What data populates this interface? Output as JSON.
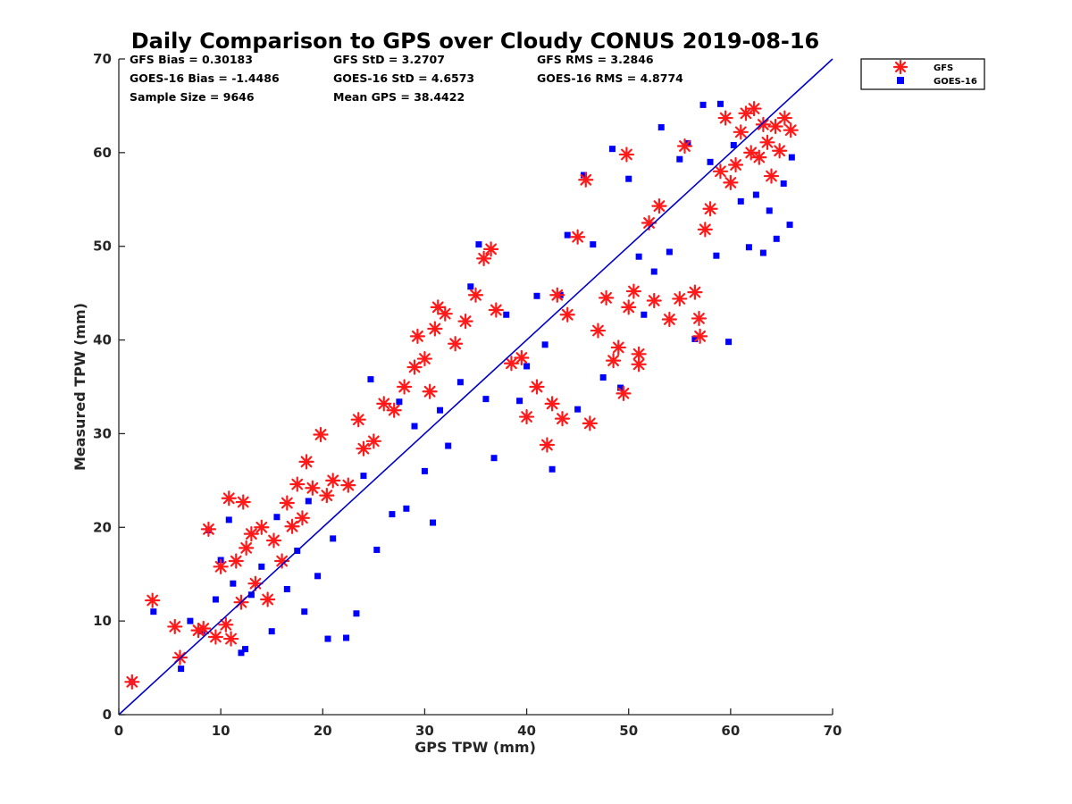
{
  "chart_data": {
    "type": "scatter",
    "title": "Daily Comparison to GPS over Cloudy CONUS 2019-08-16",
    "xlabel": "GPS TPW (mm)",
    "ylabel": "Measured TPW (mm)",
    "xlim": [
      0,
      70
    ],
    "ylim": [
      0,
      70
    ],
    "xticks": [
      "0",
      "10",
      "20",
      "30",
      "40",
      "50",
      "60",
      "70"
    ],
    "yticks": [
      "0",
      "10",
      "20",
      "30",
      "40",
      "50",
      "60",
      "70"
    ],
    "grid": false,
    "legend_position": "outside-top-right",
    "reference_line": {
      "x": [
        0,
        70
      ],
      "y": [
        0,
        70
      ],
      "color": "#0000cc"
    },
    "stats": [
      [
        "GFS Bias = 0.30183",
        "GFS StD = 3.2707",
        "GFS RMS = 3.2846"
      ],
      [
        "GOES-16 Bias = -1.4486",
        "GOES-16 StD = 4.6573",
        "GOES-16 RMS = 4.8774"
      ],
      [
        "Sample Size = 9646",
        "Mean GPS = 38.4422"
      ]
    ],
    "series": [
      {
        "name": "GFS",
        "marker": "asterisk",
        "color": "#ff1a1a",
        "points": [
          [
            1.3,
            3.5
          ],
          [
            3.3,
            12.2
          ],
          [
            5.5,
            9.4
          ],
          [
            6.0,
            6.1
          ],
          [
            7.8,
            9.0
          ],
          [
            8.3,
            9.2
          ],
          [
            8.8,
            19.8
          ],
          [
            9.5,
            8.3
          ],
          [
            10.0,
            15.8
          ],
          [
            10.5,
            9.6
          ],
          [
            10.8,
            23.1
          ],
          [
            11.0,
            8.1
          ],
          [
            11.5,
            16.4
          ],
          [
            12.0,
            12.0
          ],
          [
            12.2,
            22.7
          ],
          [
            12.5,
            17.8
          ],
          [
            13.0,
            19.3
          ],
          [
            13.4,
            14.0
          ],
          [
            14.0,
            20.0
          ],
          [
            14.6,
            12.3
          ],
          [
            15.2,
            18.6
          ],
          [
            16.0,
            16.4
          ],
          [
            16.5,
            22.6
          ],
          [
            17.0,
            20.1
          ],
          [
            17.5,
            24.6
          ],
          [
            18.0,
            21.0
          ],
          [
            18.4,
            27.0
          ],
          [
            19.0,
            24.2
          ],
          [
            19.8,
            29.9
          ],
          [
            20.4,
            23.4
          ],
          [
            21.0,
            25.0
          ],
          [
            22.5,
            24.5
          ],
          [
            23.5,
            31.5
          ],
          [
            24.0,
            28.4
          ],
          [
            25.0,
            29.2
          ],
          [
            26.0,
            33.2
          ],
          [
            27.0,
            32.5
          ],
          [
            28.0,
            35.0
          ],
          [
            29.0,
            37.1
          ],
          [
            29.3,
            40.4
          ],
          [
            30.0,
            38.0
          ],
          [
            30.5,
            34.5
          ],
          [
            31.0,
            41.2
          ],
          [
            31.3,
            43.5
          ],
          [
            32.0,
            42.8
          ],
          [
            33.0,
            39.6
          ],
          [
            34.0,
            42.0
          ],
          [
            35.0,
            44.8
          ],
          [
            35.8,
            48.7
          ],
          [
            36.5,
            49.7
          ],
          [
            37.0,
            43.2
          ],
          [
            38.5,
            37.5
          ],
          [
            39.5,
            38.1
          ],
          [
            40.0,
            31.8
          ],
          [
            41.0,
            35.0
          ],
          [
            42.0,
            28.8
          ],
          [
            42.5,
            33.2
          ],
          [
            43.0,
            44.8
          ],
          [
            43.5,
            31.6
          ],
          [
            44.0,
            42.7
          ],
          [
            45.0,
            51.0
          ],
          [
            45.8,
            57.1
          ],
          [
            46.2,
            31.1
          ],
          [
            47.0,
            41.0
          ],
          [
            47.8,
            44.5
          ],
          [
            48.5,
            37.8
          ],
          [
            49.0,
            39.2
          ],
          [
            49.5,
            34.3
          ],
          [
            49.8,
            59.8
          ],
          [
            50.0,
            43.5
          ],
          [
            50.5,
            45.2
          ],
          [
            51.0,
            38.5
          ],
          [
            51.0,
            37.4
          ],
          [
            52.0,
            52.5
          ],
          [
            52.5,
            44.2
          ],
          [
            53.0,
            54.3
          ],
          [
            54.0,
            42.2
          ],
          [
            55.0,
            44.4
          ],
          [
            55.5,
            60.7
          ],
          [
            56.5,
            45.1
          ],
          [
            56.9,
            42.3
          ],
          [
            57.0,
            40.4
          ],
          [
            57.5,
            51.8
          ],
          [
            58.0,
            54.0
          ],
          [
            59.0,
            58.0
          ],
          [
            59.5,
            63.7
          ],
          [
            60.0,
            56.8
          ],
          [
            60.5,
            58.7
          ],
          [
            61.0,
            62.2
          ],
          [
            61.5,
            64.2
          ],
          [
            62.0,
            60.0
          ],
          [
            62.3,
            64.7
          ],
          [
            62.8,
            59.5
          ],
          [
            63.2,
            63.0
          ],
          [
            63.6,
            61.1
          ],
          [
            64.0,
            57.5
          ],
          [
            64.4,
            62.8
          ],
          [
            64.8,
            60.2
          ],
          [
            65.3,
            63.7
          ],
          [
            65.9,
            62.4
          ]
        ]
      },
      {
        "name": "GOES-16",
        "marker": "square",
        "color": "#0000ff",
        "points": [
          [
            1.3,
            3.5
          ],
          [
            3.4,
            11.0
          ],
          [
            6.1,
            4.9
          ],
          [
            7.0,
            10.0
          ],
          [
            8.2,
            8.9
          ],
          [
            8.8,
            19.7
          ],
          [
            9.5,
            12.3
          ],
          [
            10.0,
            16.5
          ],
          [
            10.8,
            20.8
          ],
          [
            11.2,
            14.0
          ],
          [
            12.0,
            6.6
          ],
          [
            12.4,
            7.0
          ],
          [
            13.0,
            12.8
          ],
          [
            14.0,
            15.8
          ],
          [
            15.0,
            8.9
          ],
          [
            15.5,
            21.1
          ],
          [
            16.5,
            13.4
          ],
          [
            17.5,
            17.5
          ],
          [
            18.2,
            11.0
          ],
          [
            18.6,
            22.8
          ],
          [
            19.5,
            14.8
          ],
          [
            20.5,
            8.1
          ],
          [
            21.0,
            18.8
          ],
          [
            22.3,
            8.2
          ],
          [
            23.3,
            10.8
          ],
          [
            24.0,
            25.5
          ],
          [
            24.7,
            35.8
          ],
          [
            25.3,
            17.6
          ],
          [
            26.8,
            21.4
          ],
          [
            27.5,
            33.4
          ],
          [
            28.2,
            22.0
          ],
          [
            29.0,
            30.8
          ],
          [
            30.0,
            26.0
          ],
          [
            30.8,
            20.5
          ],
          [
            31.5,
            32.5
          ],
          [
            32.3,
            28.7
          ],
          [
            33.5,
            35.5
          ],
          [
            34.5,
            45.7
          ],
          [
            35.3,
            50.2
          ],
          [
            36.0,
            33.7
          ],
          [
            36.8,
            27.4
          ],
          [
            38.0,
            42.7
          ],
          [
            39.3,
            33.5
          ],
          [
            40.0,
            37.2
          ],
          [
            41.0,
            44.7
          ],
          [
            41.8,
            39.5
          ],
          [
            42.5,
            26.2
          ],
          [
            43.3,
            44.8
          ],
          [
            44.0,
            51.2
          ],
          [
            45.0,
            32.6
          ],
          [
            45.6,
            57.6
          ],
          [
            46.5,
            50.2
          ],
          [
            47.5,
            36.0
          ],
          [
            48.4,
            60.4
          ],
          [
            49.2,
            34.9
          ],
          [
            50.0,
            57.2
          ],
          [
            51.0,
            48.9
          ],
          [
            51.5,
            42.7
          ],
          [
            52.5,
            47.3
          ],
          [
            53.2,
            62.7
          ],
          [
            54.0,
            49.4
          ],
          [
            55.0,
            59.3
          ],
          [
            55.8,
            61.0
          ],
          [
            56.5,
            40.1
          ],
          [
            57.3,
            65.1
          ],
          [
            58.0,
            59.0
          ],
          [
            58.6,
            49.0
          ],
          [
            59.0,
            65.2
          ],
          [
            59.8,
            39.8
          ],
          [
            60.3,
            60.8
          ],
          [
            61.0,
            54.8
          ],
          [
            61.8,
            49.9
          ],
          [
            62.5,
            55.5
          ],
          [
            63.2,
            49.3
          ],
          [
            63.8,
            53.8
          ],
          [
            64.5,
            50.8
          ],
          [
            65.2,
            56.7
          ],
          [
            65.8,
            52.3
          ],
          [
            66.0,
            59.5
          ]
        ]
      }
    ]
  }
}
